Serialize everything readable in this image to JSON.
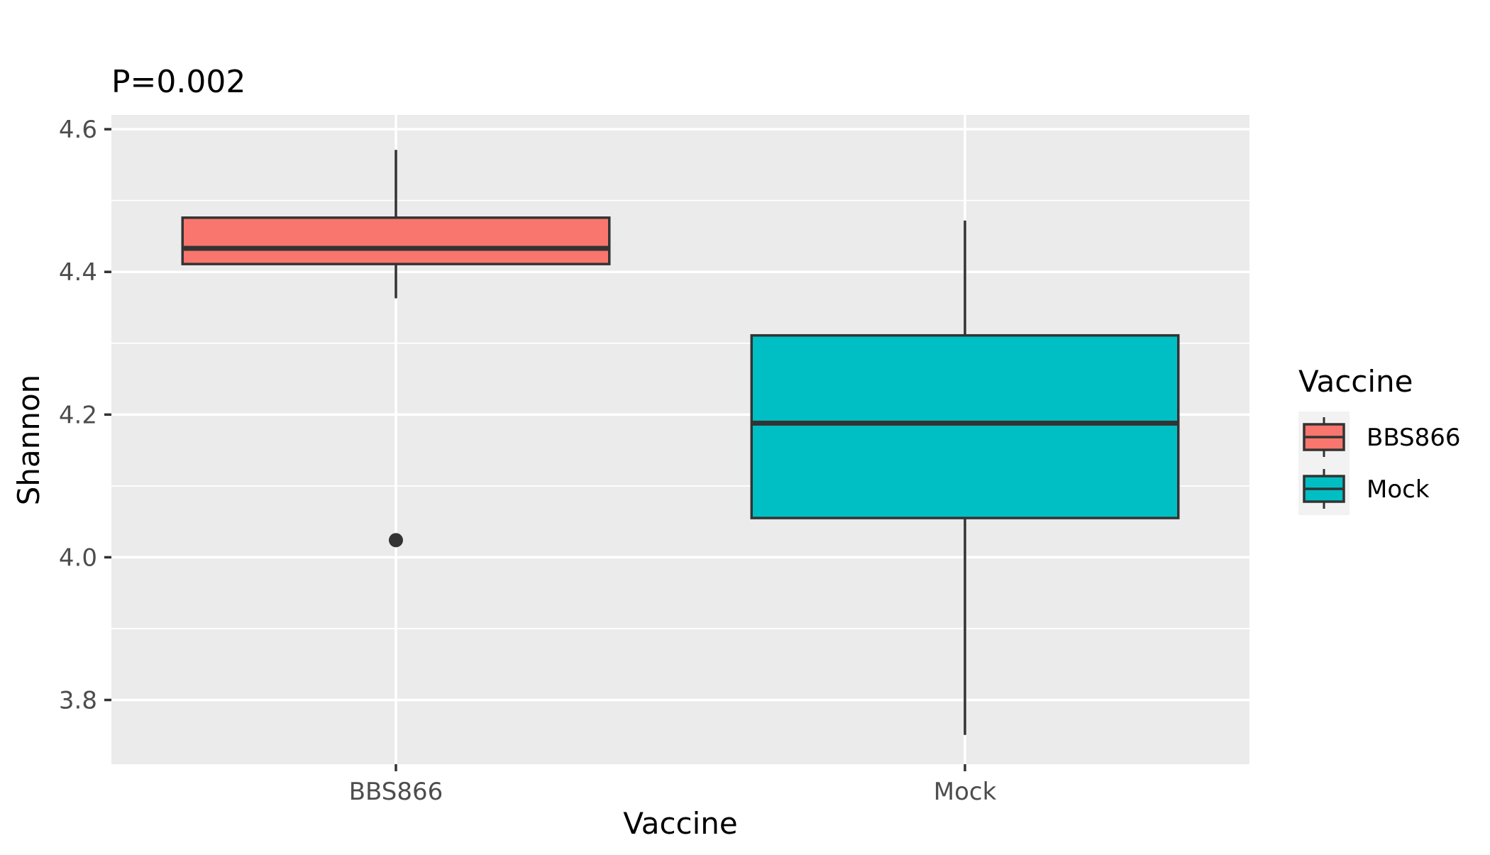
{
  "chart_data": {
    "type": "boxplot",
    "title": "P=0.002",
    "xlabel": "Vaccine",
    "ylabel": "Shannon",
    "categories": [
      "BBS866",
      "Mock"
    ],
    "ylim": [
      3.71,
      4.62
    ],
    "yticks": [
      3.8,
      4.0,
      4.2,
      4.4,
      4.6
    ],
    "ytick_labels": [
      "3.8",
      "4.0",
      "4.2",
      "4.4",
      "4.6"
    ],
    "boxes": [
      {
        "name": "BBS866",
        "whisker_low": 4.363,
        "q1": 4.411,
        "median": 4.433,
        "q3": 4.476,
        "whisker_high": 4.571,
        "outliers": [
          4.024
        ],
        "color": "#F8766D"
      },
      {
        "name": "Mock",
        "whisker_low": 3.751,
        "q1": 4.055,
        "median": 4.188,
        "q3": 4.311,
        "whisker_high": 4.472,
        "outliers": [],
        "color": "#00BFC4"
      }
    ],
    "legend": {
      "title": "Vaccine",
      "position": "right",
      "entries": [
        "BBS866",
        "Mock"
      ]
    },
    "panel_color": "#EBEBEB",
    "grid": true
  }
}
